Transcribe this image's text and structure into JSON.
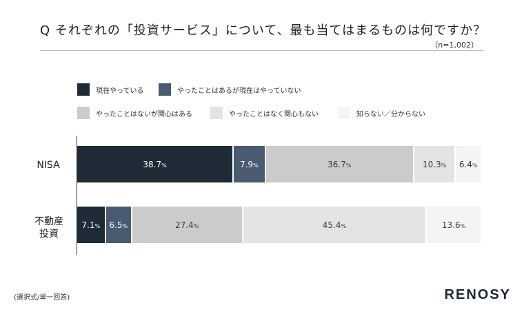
{
  "title": "Q それぞれの「投資サービス」について、最も当てはまるものは何ですか？",
  "sample_note": "（n=1,002）",
  "footnote": "(選択式/単一回答)",
  "brand": "RENOSY",
  "colors": {
    "current": "#1f2a37",
    "past": "#485b70",
    "interested": "#cbcbcb",
    "not_interested": "#e3e3e3",
    "unknown": "#f4f4f4",
    "axis": "#333333",
    "rule": "#b9b9b9"
  },
  "legend": [
    {
      "label": "現在やっている",
      "color": "#1f2a37"
    },
    {
      "label": "やったことはあるが現在はやっていない",
      "color": "#485b70"
    },
    {
      "label": "やったことはないが関心はある",
      "color": "#cbcbcb"
    },
    {
      "label": "やったことはなく関心もない",
      "color": "#e3e3e3"
    },
    {
      "label": "知らない／分からない",
      "color": "#f4f4f4"
    }
  ],
  "chart_data": {
    "type": "bar",
    "orientation": "horizontal",
    "stacked": true,
    "xlim": [
      0,
      100
    ],
    "unit": "%",
    "categories": [
      "NISA",
      "不動産投資"
    ],
    "series": [
      {
        "name": "現在やっている",
        "values": [
          38.7,
          7.1
        ]
      },
      {
        "name": "やったことはあるが現在はやっていない",
        "values": [
          7.9,
          6.5
        ]
      },
      {
        "name": "やったことはないが関心はある",
        "values": [
          36.7,
          27.4
        ]
      },
      {
        "name": "やったことはなく関心もない",
        "values": [
          10.3,
          45.4
        ]
      },
      {
        "name": "知らない／分からない",
        "values": [
          6.4,
          13.6
        ]
      }
    ],
    "label_text": [
      [
        "38.7",
        "7.9",
        "36.7",
        "10.3",
        "6.4"
      ],
      [
        "7.1",
        "6.5",
        "27.4",
        "45.4",
        "13.6"
      ]
    ],
    "percent_symbol": "%"
  }
}
